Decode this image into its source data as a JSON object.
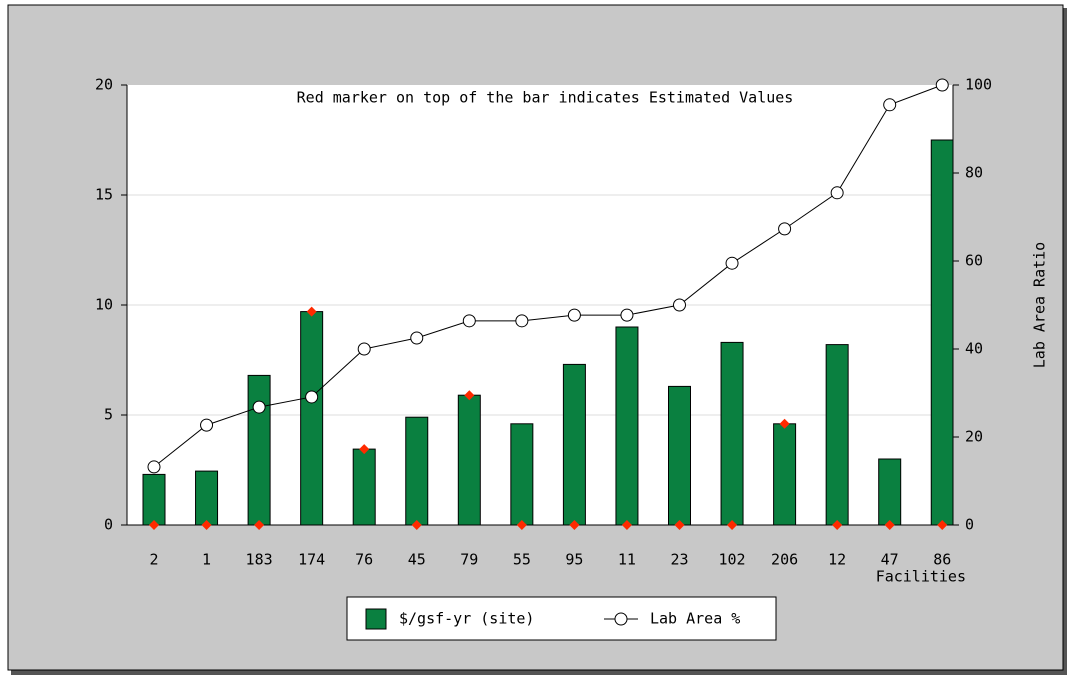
{
  "chart_data": {
    "type": "bar",
    "annotation": "Red marker on top of the bar indicates Estimated Values",
    "x_label": "Facilities",
    "y2_label": "Lab Area Ratio",
    "categories": [
      "2",
      "1",
      "183",
      "174",
      "76",
      "45",
      "79",
      "55",
      "95",
      "11",
      "23",
      "102",
      "206",
      "12",
      "47",
      "86"
    ],
    "series": [
      {
        "name": "$/gsf-yr (site)",
        "type": "bar",
        "color": "#0a8040",
        "values": [
          2.3,
          2.45,
          6.8,
          9.7,
          3.45,
          4.9,
          5.9,
          4.6,
          7.3,
          9.0,
          6.3,
          8.3,
          4.6,
          8.2,
          3.0,
          17.5
        ]
      },
      {
        "name": "Lab Area %",
        "type": "line",
        "axis": "y2",
        "color": "#000000",
        "values": [
          13.2,
          22.7,
          26.8,
          29.1,
          40,
          42.5,
          46.4,
          46.4,
          47.7,
          47.7,
          50,
          59.5,
          67.3,
          75.5,
          95.5,
          100
        ]
      }
    ],
    "estimate_markers": {
      "color": "#ff2a00",
      "values": [
        0,
        0,
        0,
        9.7,
        3.45,
        0,
        5.9,
        0,
        0,
        0,
        0,
        0,
        4.6,
        0,
        0,
        0
      ]
    },
    "ylim": [
      0,
      20
    ],
    "yticks": [
      0,
      5,
      10,
      15,
      20
    ],
    "y2lim": [
      0,
      100
    ],
    "y2ticks": [
      0,
      20,
      40,
      60,
      80,
      100
    ],
    "grid": true
  }
}
